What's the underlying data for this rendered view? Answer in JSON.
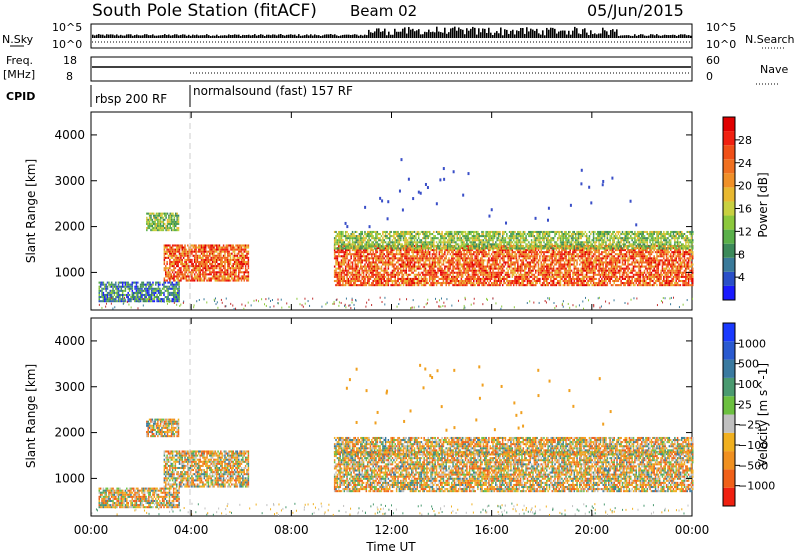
{
  "header": {
    "station": "South Pole Station (fitACF)",
    "beam": "Beam 02",
    "date": "05/Jun/2015"
  },
  "sky_panel": {
    "left_label": "N.Sky",
    "right_label": "N.Search",
    "left_ticks": [
      "10^5",
      "10^0"
    ],
    "right_ticks": [
      "10^5",
      "10^0"
    ]
  },
  "freq_panel": {
    "left_label_1": "Freq.",
    "left_label_2": "[MHz]",
    "right_label": "Nave",
    "left_ticks": [
      "18",
      "8"
    ],
    "right_ticks": [
      "60",
      "0"
    ]
  },
  "cpid": {
    "label": "CPID",
    "modes": [
      {
        "name": "rbsp 200 RF",
        "start": "00:00",
        "end": "04:00"
      },
      {
        "name": "normalsound (fast) 157 RF",
        "start": "04:00",
        "end": "24:00"
      }
    ]
  },
  "chart_data": [
    {
      "type": "heatmap",
      "title": "",
      "xlabel": "Time UT",
      "ylabel": "Slant Range [km]",
      "x_ticks": [
        "00:00",
        "04:00",
        "08:00",
        "12:00",
        "16:00",
        "20:00",
        "00:00"
      ],
      "y_ticks": [
        1000,
        2000,
        3000,
        4000
      ],
      "xlim_hours": [
        0,
        24
      ],
      "ylim_km": [
        180,
        4500
      ],
      "colorbar": {
        "label": "Power [dB]",
        "ticks": [
          "4",
          "8",
          "12",
          "16",
          "20",
          "24",
          "28"
        ],
        "range": [
          0,
          30
        ],
        "colors": [
          "#1a1aff",
          "#2a4fc8",
          "#3a7a9a",
          "#3c8a5a",
          "#5ab04a",
          "#8cc83c",
          "#c8d040",
          "#e8b830",
          "#f09028",
          "#f07020",
          "#f05018",
          "#f02010",
          "#e00000"
        ]
      },
      "bands": [
        {
          "t0": 0.3,
          "t1": 3.5,
          "r0": 350,
          "r1": 800,
          "level": "low"
        },
        {
          "t0": 2.9,
          "t1": 6.3,
          "r0": 800,
          "r1": 1600,
          "level": "high"
        },
        {
          "t0": 2.2,
          "t1": 3.5,
          "r0": 1900,
          "r1": 2300,
          "level": "mid"
        },
        {
          "t0": 9.7,
          "t1": 24,
          "r0": 700,
          "r1": 1600,
          "level": "high"
        },
        {
          "t0": 9.7,
          "t1": 24,
          "r0": 1500,
          "r1": 1900,
          "level": "mid"
        }
      ]
    },
    {
      "type": "heatmap",
      "title": "",
      "xlabel": "Time UT",
      "ylabel": "Slant Range [km]",
      "x_ticks": [
        "00:00",
        "04:00",
        "08:00",
        "12:00",
        "16:00",
        "20:00",
        "00:00"
      ],
      "y_ticks": [
        1000,
        2000,
        3000,
        4000
      ],
      "xlim_hours": [
        0,
        24
      ],
      "ylim_km": [
        180,
        4500
      ],
      "colorbar": {
        "label": "Velocity [m s^-1]",
        "ticks": [
          "1000",
          "500",
          "100",
          "25",
          "−25",
          "−100",
          "−500",
          "−1000"
        ],
        "colors": [
          "#1a3aff",
          "#2a5ad0",
          "#3a7aa0",
          "#4a9a70",
          "#6cc040",
          "#c0c0c0",
          "#f0b020",
          "#f09020",
          "#f06018",
          "#f02010"
        ]
      },
      "bands": [
        {
          "t0": 0.3,
          "t1": 3.5,
          "r0": 350,
          "r1": 800,
          "level": "mixed"
        },
        {
          "t0": 2.9,
          "t1": 6.3,
          "r0": 800,
          "r1": 1600,
          "level": "mixed"
        },
        {
          "t0": 2.2,
          "t1": 3.5,
          "r0": 1900,
          "r1": 2300,
          "level": "mixed"
        },
        {
          "t0": 9.7,
          "t1": 24,
          "r0": 700,
          "r1": 1600,
          "level": "mixed"
        },
        {
          "t0": 9.7,
          "t1": 24,
          "r0": 1500,
          "r1": 1900,
          "level": "mixed"
        }
      ]
    }
  ]
}
